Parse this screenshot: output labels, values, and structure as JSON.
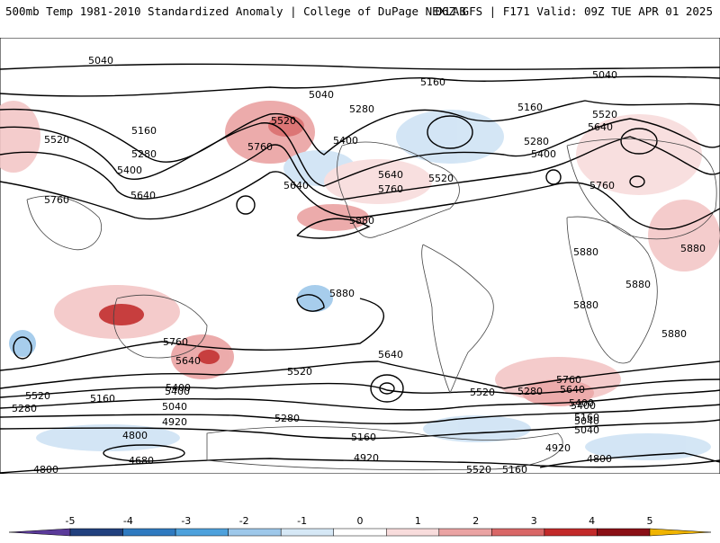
{
  "header": {
    "left": "500mb Temp 1981-2010 Standardized Anomaly | College of DuPage NEXLAB",
    "right": "06Z GFS | F171 Valid: 09Z TUE APR 01 2025"
  },
  "contour_labels": [
    "5040",
    "5040",
    "5040",
    "5160",
    "5160",
    "5160",
    "5520",
    "5520",
    "5520",
    "5520",
    "5520",
    "5280",
    "5280",
    "5280",
    "5160",
    "5400",
    "5400",
    "5400",
    "5640",
    "5640",
    "5640",
    "5640",
    "5760",
    "5760",
    "5760",
    "5760",
    "5880",
    "5880",
    "5880",
    "5880",
    "5880",
    "5880",
    "5880",
    "5760",
    "5640",
    "5520",
    "5400",
    "5280",
    "5160",
    "5040",
    "4920",
    "4920",
    "4800",
    "4800",
    "4800",
    "4680",
    "5160",
    "5040",
    "4920",
    "5640",
    "5520",
    "5400",
    "5280",
    "5160",
    "5040",
    "5760",
    "5640",
    "5400",
    "5280",
    "5520",
    "5400"
  ],
  "colorbar": {
    "ticks": [
      "-5",
      "-4",
      "-3",
      "-2",
      "-1",
      "0",
      "1",
      "2",
      "3",
      "4",
      "5"
    ],
    "colors": [
      "#5b3a9a",
      "#21407e",
      "#2f7ac0",
      "#4ea1dc",
      "#9ec8ea",
      "#d6e8f6",
      "#ffffff",
      "#f8dcdc",
      "#eaa3a3",
      "#d96767",
      "#c22a2a",
      "#8a0f16",
      "#f0b400"
    ]
  }
}
